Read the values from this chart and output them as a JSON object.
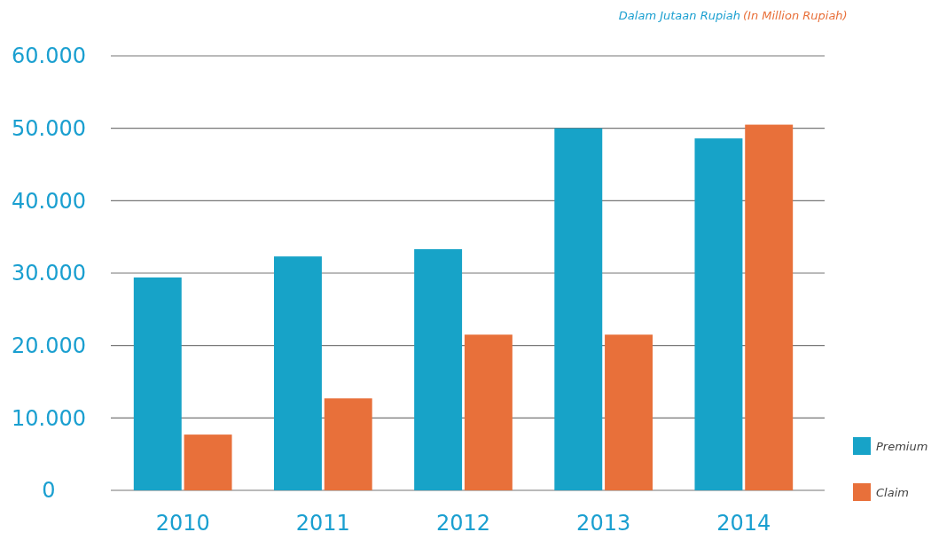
{
  "chart_data": {
    "type": "bar",
    "title": "Dalam Jutaan Rupiah",
    "subtitle": "(In Million Rupiah)",
    "categories": [
      "2010",
      "2011",
      "2012",
      "2013",
      "2014"
    ],
    "series": [
      {
        "name": "Premium",
        "color": "#17a3c8",
        "values": [
          29400,
          32300,
          33300,
          50000,
          48600
        ]
      },
      {
        "name": "Claim",
        "color": "#e8703a",
        "values": [
          7700,
          12700,
          21500,
          21500,
          50500
        ]
      }
    ],
    "ylim": [
      0,
      60000
    ],
    "yticks": [
      {
        "value": 0,
        "label": "0"
      },
      {
        "value": 10000,
        "label": "10.000"
      },
      {
        "value": 20000,
        "label": "20.000"
      },
      {
        "value": 30000,
        "label": "30.000"
      },
      {
        "value": 40000,
        "label": "40.000"
      },
      {
        "value": 50000,
        "label": "50.000"
      },
      {
        "value": 60000,
        "label": "60.000"
      }
    ],
    "grid": "y",
    "legend": "bottom right"
  }
}
